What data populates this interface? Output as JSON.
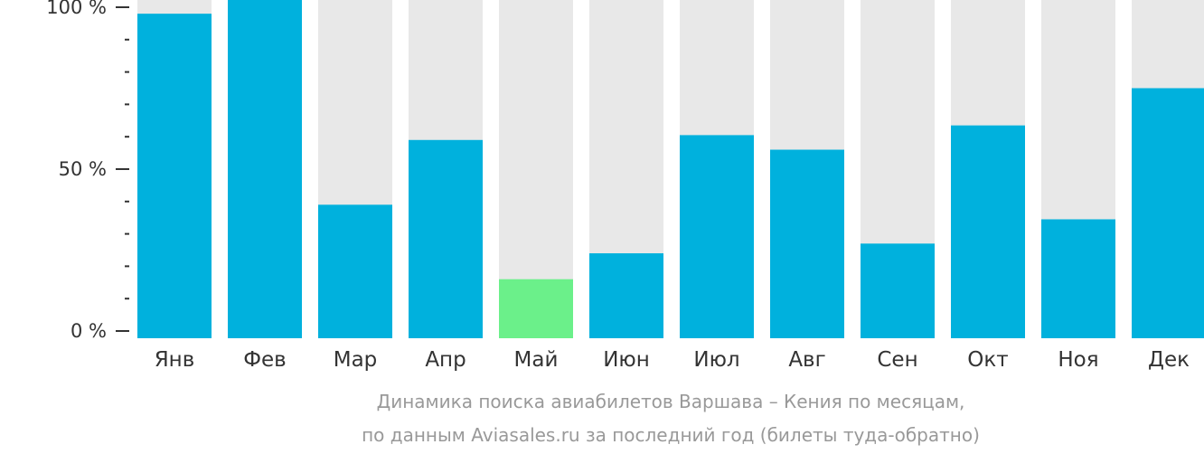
{
  "chart_data": {
    "type": "bar",
    "categories": [
      "Янв",
      "Фев",
      "Мар",
      "Апр",
      "Май",
      "Июн",
      "Июл",
      "Авг",
      "Сен",
      "Окт",
      "Ноя",
      "Дек"
    ],
    "values": [
      98,
      104,
      39,
      59,
      16,
      24,
      60.5,
      56,
      27,
      63.5,
      34.5,
      75
    ],
    "highlight_index": 4,
    "ylim": [
      0,
      100
    ],
    "yticks": [
      {
        "value": 0,
        "label": "0 %"
      },
      {
        "value": 50,
        "label": "50 %"
      },
      {
        "value": 100,
        "label": "100 %"
      }
    ],
    "minor_tick_step": 10,
    "title": "",
    "subtitle": "",
    "xlabel": "",
    "ylabel": "",
    "caption_lines": [
      "Динамика поиска авиабилетов Варшава – Кения по месяцам,",
      "по данным Aviasales.ru за последний год (билеты туда-обратно)"
    ],
    "colors": {
      "bar": "#00b1dd",
      "highlight": "#6bf08a",
      "track": "#e8e8e8",
      "axis": "#333333",
      "caption": "#999999"
    }
  }
}
